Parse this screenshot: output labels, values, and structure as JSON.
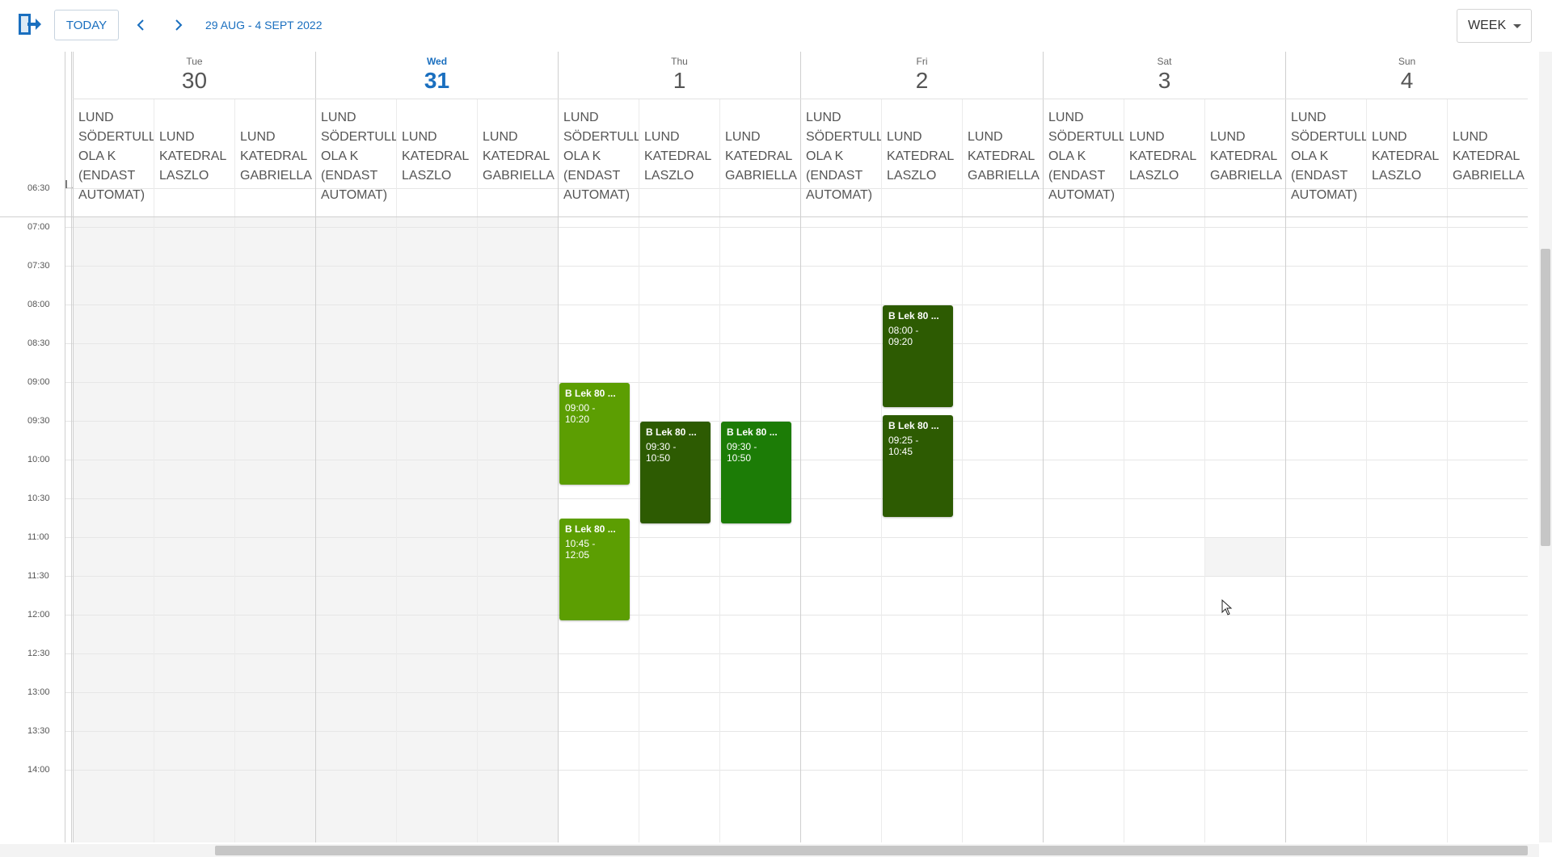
{
  "toolbar": {
    "today_label": "TODAY",
    "date_range": "29 AUG - 4 SEPT 2022",
    "view_label": "WEEK",
    "accent": "#1a6fbf"
  },
  "days": [
    {
      "name": "Tue",
      "num": "30",
      "today": false
    },
    {
      "name": "Wed",
      "num": "31",
      "today": true
    },
    {
      "name": "Thu",
      "num": "1",
      "today": false
    },
    {
      "name": "Fri",
      "num": "2",
      "today": false
    },
    {
      "name": "Sat",
      "num": "3",
      "today": false
    },
    {
      "name": "Sun",
      "num": "4",
      "today": false
    }
  ],
  "partial_resource_label": "LA",
  "resources": [
    {
      "label": "LUND\nSÖDERTULL\nOLA K\n(ENDAST\nAUTOMAT)"
    },
    {
      "label": "LUND\nKATEDRAL\nLASZLO"
    },
    {
      "label": "LUND\nKATEDRAL\nGABRIELLA"
    }
  ],
  "times": [
    "06:30",
    "07:00",
    "07:30",
    "08:00",
    "08:30",
    "09:00",
    "09:30",
    "10:00",
    "10:30",
    "11:00",
    "11:30",
    "12:00",
    "12:30",
    "13:00",
    "13:30",
    "14:00"
  ],
  "events": [
    {
      "day": 2,
      "resource": 0,
      "title": "B Lek 80 ...",
      "start": "09:00",
      "end": "10:20",
      "color": "#5c9e02"
    },
    {
      "day": 2,
      "resource": 0,
      "title": "B Lek 80 ...",
      "start": "10:45",
      "end": "12:05",
      "color": "#5c9e02"
    },
    {
      "day": 2,
      "resource": 1,
      "title": "B Lek 80 ...",
      "start": "09:30",
      "end": "10:50",
      "color": "#2d5b02"
    },
    {
      "day": 2,
      "resource": 2,
      "title": "B Lek 80 ...",
      "start": "09:30",
      "end": "10:50",
      "color": "#1c7c06"
    },
    {
      "day": 3,
      "resource": 1,
      "title": "B Lek 80 ...",
      "start": "08:00",
      "end": "09:20",
      "color": "#2d5b02"
    },
    {
      "day": 3,
      "resource": 1,
      "title": "B Lek 80 ...",
      "start": "09:25",
      "end": "10:45",
      "color": "#2d5b02"
    }
  ]
}
